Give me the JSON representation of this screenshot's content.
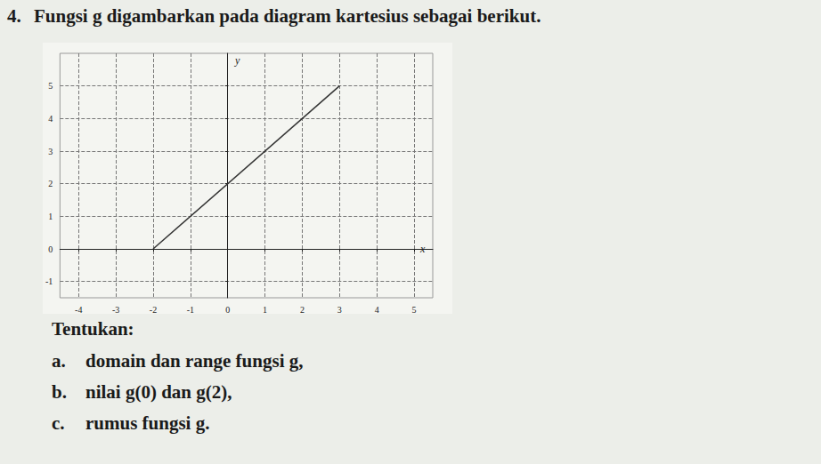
{
  "question": {
    "number": "4.",
    "text": "Fungsi g digambarkan pada diagram kartesius sebagai berikut."
  },
  "chart_data": {
    "type": "line",
    "x": [
      -2,
      3
    ],
    "values": [
      0,
      5
    ],
    "color": "#333333",
    "xlabel": "x",
    "ylabel": "y",
    "xlim": [
      -4.5,
      5.5
    ],
    "xticks": [
      -4,
      -3,
      -2,
      -1,
      0,
      1,
      2,
      3,
      4,
      5
    ],
    "ylim": [
      -1.5,
      6
    ],
    "yticks": [
      -1,
      0,
      1,
      2,
      3,
      4,
      5
    ],
    "grid": true
  },
  "prompt": "Tentukan:",
  "items": [
    {
      "label": "a.",
      "text": "domain dan range fungsi g,"
    },
    {
      "label": "b.",
      "text": "nilai g(0) dan g(2),"
    },
    {
      "label": "c.",
      "text": "rumus fungsi g."
    }
  ]
}
